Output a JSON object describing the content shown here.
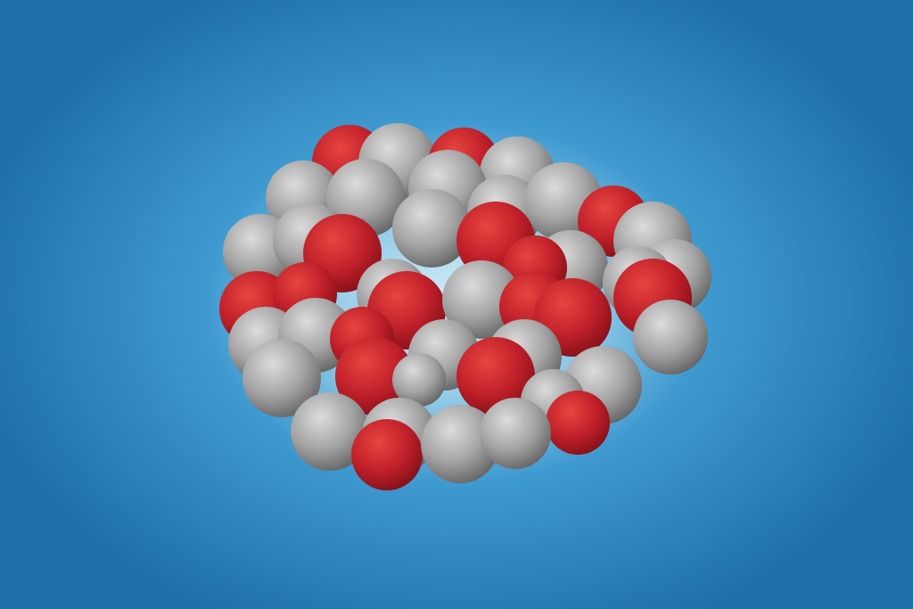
{
  "scene": {
    "subject": "molecule-cluster",
    "colors": {
      "background_center": "#bfe3f3",
      "background_mid": "#3f9ad0",
      "background_edge": "#1d6fa8",
      "atom_gray_light": "#d7d7d7",
      "atom_gray_mid": "#9a9a9a",
      "atom_gray_dark": "#5a5a5a",
      "atom_red_light": "#e8403f",
      "atom_red_mid": "#c0202a",
      "atom_red_dark": "#7e0f16"
    }
  }
}
